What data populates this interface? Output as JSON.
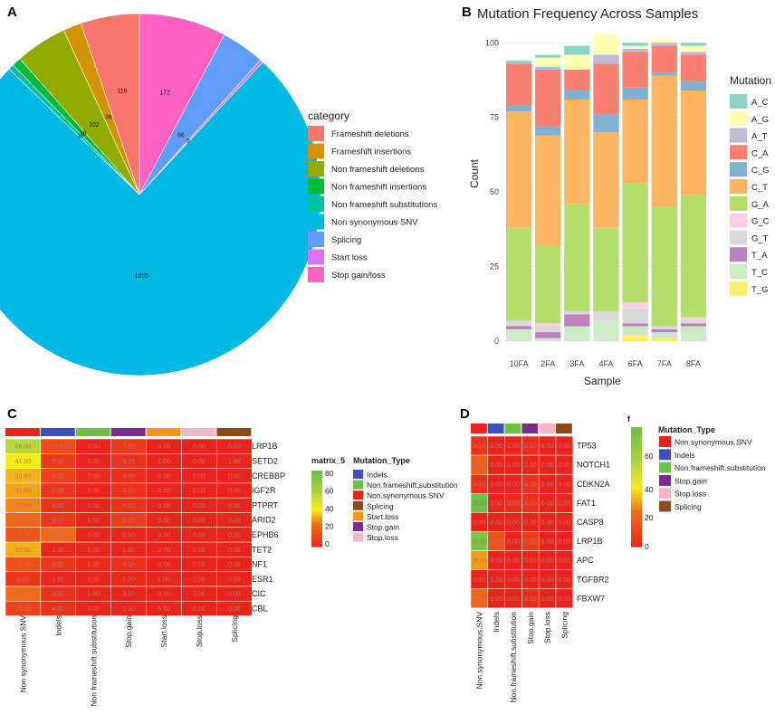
{
  "panels": {
    "a": "A",
    "b": "B",
    "c": "C",
    "d": "D"
  },
  "pie": {
    "legend_title": "category",
    "chart_data": {
      "type": "pie",
      "categories": [
        "Frameshift deletions",
        "Frameshift insertions",
        "Non frameshift deletions",
        "Non frameshift insertions",
        "Non frameshift substitutions",
        "Non synonymous SNV",
        "Splicing",
        "Start loss",
        "Stop gain/loss"
      ],
      "values": [
        116,
        36,
        102,
        18,
        11,
        1665,
        86,
        6,
        172
      ],
      "colors": [
        "#F8766D",
        "#D39200",
        "#93AA00",
        "#00BA38",
        "#00C19F",
        "#00B9E3",
        "#619CFF",
        "#DB72FB",
        "#FF61C3"
      ],
      "labels": [
        "116",
        "36",
        "102",
        "18",
        "11",
        "1665",
        "86",
        "6",
        "172"
      ]
    }
  },
  "bar": {
    "title": "Mutation Frequency Across Samples",
    "xlabel": "Sample",
    "ylabel": "Count",
    "legend_title": "Mutation",
    "chart_data": {
      "type": "bar",
      "stacked": true,
      "categories": [
        "10FA",
        "2FA",
        "3FA",
        "4FA",
        "6FA",
        "7FA",
        "8FA"
      ],
      "ylim": [
        0,
        101
      ],
      "yticks": [
        0,
        25,
        50,
        75,
        100
      ],
      "series": [
        {
          "name": "A_C",
          "color": "#8DD3C7",
          "values": [
            1,
            1,
            3,
            0,
            1,
            0,
            1
          ]
        },
        {
          "name": "A_G",
          "color": "#FFFFB3",
          "values": [
            0,
            3,
            5,
            7,
            1,
            1,
            2
          ]
        },
        {
          "name": "A_T",
          "color": "#BEBADA",
          "values": [
            0,
            1,
            0,
            3,
            1,
            1,
            1
          ]
        },
        {
          "name": "C_A",
          "color": "#FB8072",
          "values": [
            14,
            19,
            7,
            17,
            12,
            9,
            9
          ]
        },
        {
          "name": "C_G",
          "color": "#80B1D3",
          "values": [
            2,
            3,
            3,
            6,
            4,
            1,
            3
          ]
        },
        {
          "name": "C_T",
          "color": "#FDB462",
          "values": [
            39,
            37,
            35,
            32,
            28,
            44,
            35
          ]
        },
        {
          "name": "G_A",
          "color": "#B3DE69",
          "values": [
            31,
            26,
            36,
            28,
            40,
            40,
            41
          ]
        },
        {
          "name": "G_C",
          "color": "#FCCDE5",
          "values": [
            0,
            1,
            0,
            0,
            2,
            0,
            1
          ]
        },
        {
          "name": "G_T",
          "color": "#D9D9D9",
          "values": [
            2,
            2,
            1,
            3,
            5,
            1,
            1
          ]
        },
        {
          "name": "T_A",
          "color": "#BC80BD",
          "values": [
            1,
            2,
            4,
            0,
            1,
            1,
            1
          ]
        },
        {
          "name": "T_C",
          "color": "#CCEBC5",
          "values": [
            4,
            1,
            5,
            7,
            3,
            2,
            5
          ]
        },
        {
          "name": "T_G",
          "color": "#FFED6F",
          "values": [
            0,
            0,
            0,
            0,
            2,
            1,
            0
          ]
        }
      ]
    }
  },
  "heatmap_c": {
    "legend_scale_title": "matrix_5",
    "legend_scale_ticks": [
      "80",
      "60",
      "40",
      "20",
      "0"
    ],
    "legend_types_title": "Mutation_Type",
    "legend_types": [
      {
        "label": "Indels",
        "color": "#3F51B5"
      },
      {
        "label": "Non.frameshift.substitution",
        "color": "#6CC04A"
      },
      {
        "label": "Non.synonymous.SNV",
        "color": "#E8251C"
      },
      {
        "label": "Splicing",
        "color": "#8B4A1C"
      },
      {
        "label": "Start.loss",
        "color": "#F7941D"
      },
      {
        "label": "Stop.gain",
        "color": "#7B2D8E"
      },
      {
        "label": "Stop.loss",
        "color": "#F4B6C8"
      }
    ],
    "column_colors": [
      "#E8251C",
      "#3F51B5",
      "#6CC04A",
      "#7B2D8E",
      "#F7941D",
      "#F4B6C8",
      "#8B4A1C"
    ],
    "chart_data": {
      "type": "heatmap",
      "rows": [
        "LRP1B",
        "SETD2",
        "CREBBP",
        "IGF2R",
        "PTPRT",
        "ARID2",
        "EPHB6",
        "TET2",
        "NF1",
        "ESR1",
        "CIC",
        "CBL"
      ],
      "columns": [
        "Non synonymous SNV",
        "Indels",
        "Non frameshift substitution",
        "Stop.gain",
        "Start.loss",
        "Stop.loss",
        "Splicing"
      ],
      "scale": [
        0,
        80
      ],
      "values": [
        [
          "56.00",
          "13.00",
          "0.00",
          "7.00",
          "0.00",
          "0.00",
          "0.00"
        ],
        [
          "41.00",
          "7.00",
          "0.00",
          "5.00",
          "1.00",
          "0.00",
          "1.00"
        ],
        [
          "33.00",
          "9.00",
          "2.00",
          "3.00",
          "0.00",
          "0.00",
          "0.00"
        ],
        [
          "31.00",
          "6.00",
          "0.00",
          "5.00",
          "0.00",
          "0.00",
          "0.00"
        ],
        [
          "27.00",
          "4.00",
          "0.00",
          "4.00",
          "0.00",
          "0.00",
          "0.00"
        ],
        [
          "22.00",
          "6.00",
          "0.00",
          "8.00",
          "0.00",
          "0.00",
          "0.00"
        ],
        [
          "16.00",
          "22.00",
          "0.00",
          "0.00",
          "0.00",
          "0.00",
          "0.00"
        ],
        [
          "32.00",
          "1.00",
          "1.00",
          "1.00",
          "0.00",
          "0.00",
          "0.00"
        ],
        [
          "15.00",
          "6.00",
          "2.00",
          "4.00",
          "0.00",
          "0.00",
          "0.00"
        ],
        [
          "6.00",
          "1.00",
          "0.00",
          "2.00",
          "1.00",
          "0.00",
          "0.00"
        ],
        [
          "23.00",
          "4.00",
          "1.00",
          "0.00",
          "0.00",
          "0.00",
          "0.00"
        ],
        [
          "10.00",
          "4.00",
          "0.00",
          "1.00",
          "0.00",
          "0.00",
          "0.00"
        ]
      ]
    }
  },
  "heatmap_d": {
    "legend_scale_title": "f",
    "legend_scale_ticks": [
      "60",
      "40",
      "20",
      "0"
    ],
    "legend_types_title": "Mutation_Type",
    "legend_types": [
      {
        "label": "Non.synonymous.SNV",
        "color": "#E8251C"
      },
      {
        "label": "Indels",
        "color": "#3F51B5"
      },
      {
        "label": "Non.frameshift.substitution",
        "color": "#6CC04A"
      },
      {
        "label": "Stop.gain",
        "color": "#7B2D8E"
      },
      {
        "label": "Stop.loss",
        "color": "#F4B6C8"
      },
      {
        "label": "Splicing",
        "color": "#8B4A1C"
      }
    ],
    "column_colors": [
      "#E8251C",
      "#3F51B5",
      "#6CC04A",
      "#7B2D8E",
      "#F4B6C8",
      "#8B4A1C"
    ],
    "chart_data": {
      "type": "heatmap",
      "rows": [
        "TP53",
        "NOTCH1",
        "CDKN2A",
        "FAT1",
        "CASP8",
        "LRP1B",
        "APC",
        "TGFBR2",
        "FBXW7"
      ],
      "columns": [
        "Non.synonymous.SNV",
        "Indels",
        "Non.frameshift.substitution",
        "Stop.gain",
        "Stop.loss",
        "Splicing"
      ],
      "scale": [
        0,
        70
      ],
      "values": [
        [
          "4.00",
          "0.00",
          "1.00",
          "2.00",
          "0.00",
          "0.00"
        ],
        [
          "17.00",
          "0.00",
          "0.00",
          "1.00",
          "0.00",
          "0.00"
        ],
        [
          "4.00",
          "0.00",
          "0.00",
          "4.00",
          "0.00",
          "0.00"
        ],
        [
          "79.00",
          "0.00",
          "3.00",
          "4.00",
          "0.00",
          "1.00"
        ],
        [
          "0.00",
          "0.00",
          "0.00",
          "0.00",
          "0.00",
          "0.00"
        ],
        [
          "66.00",
          "13.00",
          "0.00",
          "7.00",
          "0.00",
          "0.00"
        ],
        [
          "26.00",
          "0.00",
          "0.00",
          "0.00",
          "0.00",
          "0.00"
        ],
        [
          "0.00",
          "0.00",
          "0.00",
          "0.00",
          "0.00",
          "0.00"
        ],
        [
          "19.00",
          "0.00",
          "0.00",
          "3.00",
          "0.00",
          "0.00"
        ]
      ]
    }
  }
}
